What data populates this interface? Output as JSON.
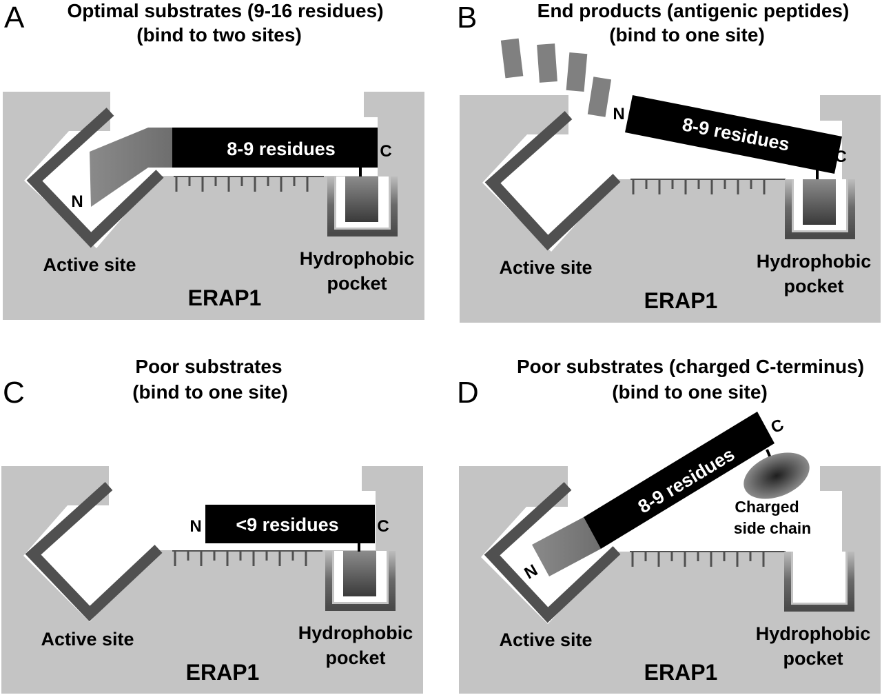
{
  "panels": [
    {
      "letter": "A",
      "title_line1": "Optimal  substrates (9-16 residues)",
      "title_line2": "(bind to two sites)",
      "peptide_label": "8-9 residues",
      "n_label": "N",
      "c_label": "C",
      "active_site": "Active site",
      "pocket_line1": "Hydrophobic",
      "pocket_line2": "pocket",
      "enzyme": "ERAP1"
    },
    {
      "letter": "B",
      "title_line1": "End products (antigenic peptides)",
      "title_line2": "(bind to one site)",
      "peptide_label": "8-9 residues",
      "n_label": "N",
      "c_label": "C",
      "active_site": "Active site",
      "pocket_line1": "Hydrophobic",
      "pocket_line2": "pocket",
      "enzyme": "ERAP1"
    },
    {
      "letter": "C",
      "title_line1": "Poor substrates",
      "title_line2": "(bind to one site)",
      "peptide_label": "<9 residues",
      "n_label": "N",
      "c_label": "C",
      "active_site": "Active site",
      "pocket_line1": "Hydrophobic",
      "pocket_line2": "pocket",
      "enzyme": "ERAP1"
    },
    {
      "letter": "D",
      "title_line1": "Poor substrates (charged C-terminus)",
      "title_line2": "(bind to one site)",
      "peptide_label": "8-9 residues",
      "n_label": "N",
      "c_label": "C",
      "active_site": "Active site",
      "pocket_line1": "Hydrophobic",
      "pocket_line2": "pocket",
      "enzyme": "ERAP1",
      "charged_line1": "Charged",
      "charged_line2": "side chain"
    }
  ],
  "colors": {
    "enzyme_fill": "#c4c4c4",
    "wall": "#505050",
    "peptide": "#000000",
    "n_segment": "#808080",
    "text": "#000000"
  }
}
